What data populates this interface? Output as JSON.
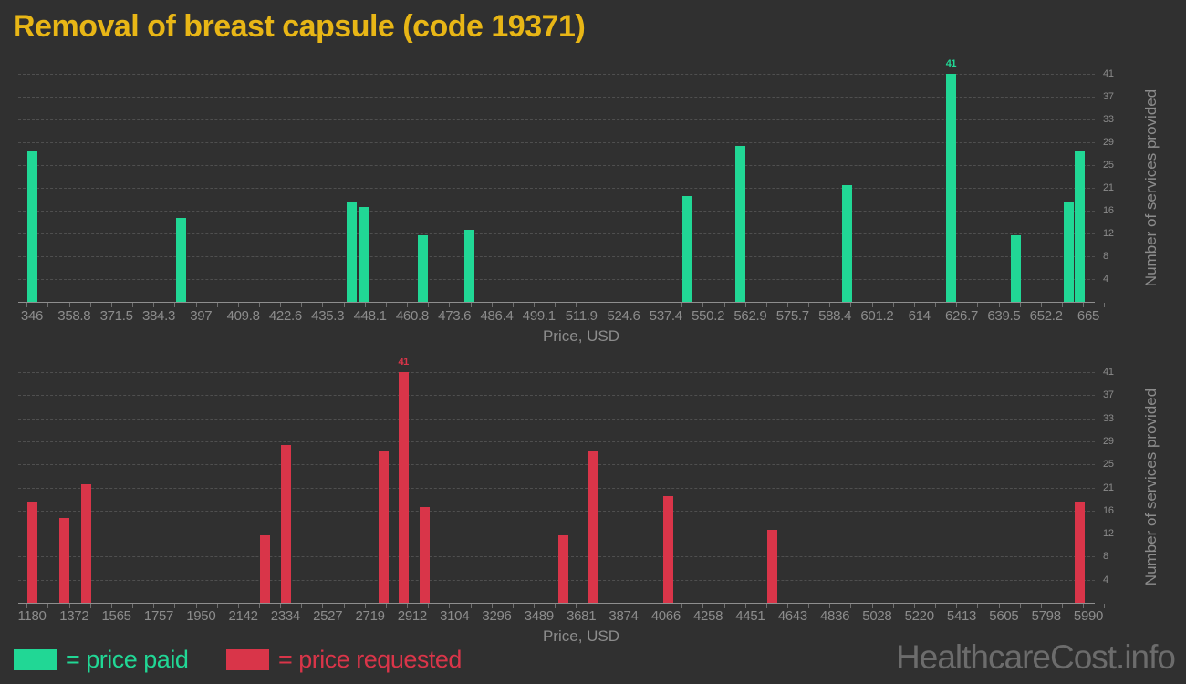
{
  "ui": {
    "title": "Removal of breast capsule (code 19371)",
    "watermark": "HealthcareCost.info",
    "background": "#303030",
    "title_color": "#e8b616",
    "axis_text_color": "#8c8c8c",
    "legend": [
      {
        "label": "= price paid",
        "color": "#21d795"
      },
      {
        "label": "= price requested",
        "color": "#d93549"
      }
    ]
  },
  "chart_data": [
    {
      "type": "bar",
      "series": "price paid",
      "color": "#21d795",
      "xlabel": "Price, USD",
      "ylabel": "Number of services provided",
      "xlim": [
        346,
        665
      ],
      "ylim": [
        0,
        41
      ],
      "grid": "horizontal-dashed",
      "legend_position": "bottom-left",
      "x_tick_labels": [
        "346",
        "358.8",
        "371.5",
        "384.3",
        "397",
        "409.8",
        "422.6",
        "435.3",
        "448.1",
        "460.8",
        "473.6",
        "486.4",
        "499.1",
        "511.9",
        "524.6",
        "537.4",
        "550.2",
        "562.9",
        "575.7",
        "588.4",
        "601.2",
        "614",
        "626.7",
        "639.5",
        "652.2",
        "665"
      ],
      "y_tick_labels": [
        "4",
        "8",
        "12",
        "16",
        "21",
        "25",
        "29",
        "33",
        "37",
        "41"
      ],
      "annotation": {
        "text": "41",
        "price": 623.5
      },
      "bars": [
        {
          "price": 346,
          "count": 27
        },
        {
          "price": 391,
          "count": 15
        },
        {
          "price": 442.5,
          "count": 18
        },
        {
          "price": 446,
          "count": 17
        },
        {
          "price": 464,
          "count": 12
        },
        {
          "price": 478,
          "count": 13
        },
        {
          "price": 544,
          "count": 19
        },
        {
          "price": 560,
          "count": 28
        },
        {
          "price": 592,
          "count": 21
        },
        {
          "price": 623.5,
          "count": 41
        },
        {
          "price": 643,
          "count": 12
        },
        {
          "price": 659,
          "count": 18
        },
        {
          "price": 662.5,
          "count": 27
        }
      ]
    },
    {
      "type": "bar",
      "series": "price requested",
      "color": "#d93549",
      "xlabel": "Price, USD",
      "ylabel": "Number of services provided",
      "xlim": [
        1180,
        5990
      ],
      "ylim": [
        0,
        41
      ],
      "grid": "horizontal-dashed",
      "legend_position": "bottom-left",
      "x_tick_labels": [
        "1180",
        "1372",
        "1565",
        "1757",
        "1950",
        "2142",
        "2334",
        "2527",
        "2719",
        "2912",
        "3104",
        "3296",
        "3489",
        "3681",
        "3874",
        "4066",
        "4258",
        "4451",
        "4643",
        "4836",
        "5028",
        "5220",
        "5413",
        "5605",
        "5798",
        "5990"
      ],
      "y_tick_labels": [
        "4",
        "8",
        "12",
        "16",
        "21",
        "25",
        "29",
        "33",
        "37",
        "41"
      ],
      "annotation": {
        "text": "41",
        "price": 2871
      },
      "bars": [
        {
          "price": 1181,
          "count": 18
        },
        {
          "price": 1328,
          "count": 15
        },
        {
          "price": 1428,
          "count": 21
        },
        {
          "price": 2240,
          "count": 12
        },
        {
          "price": 2338,
          "count": 28
        },
        {
          "price": 2780,
          "count": 27
        },
        {
          "price": 2871,
          "count": 41
        },
        {
          "price": 2968,
          "count": 17
        },
        {
          "price": 3598,
          "count": 12
        },
        {
          "price": 3735,
          "count": 27
        },
        {
          "price": 4075,
          "count": 19
        },
        {
          "price": 4552,
          "count": 13
        },
        {
          "price": 5950,
          "count": 18
        }
      ]
    }
  ]
}
